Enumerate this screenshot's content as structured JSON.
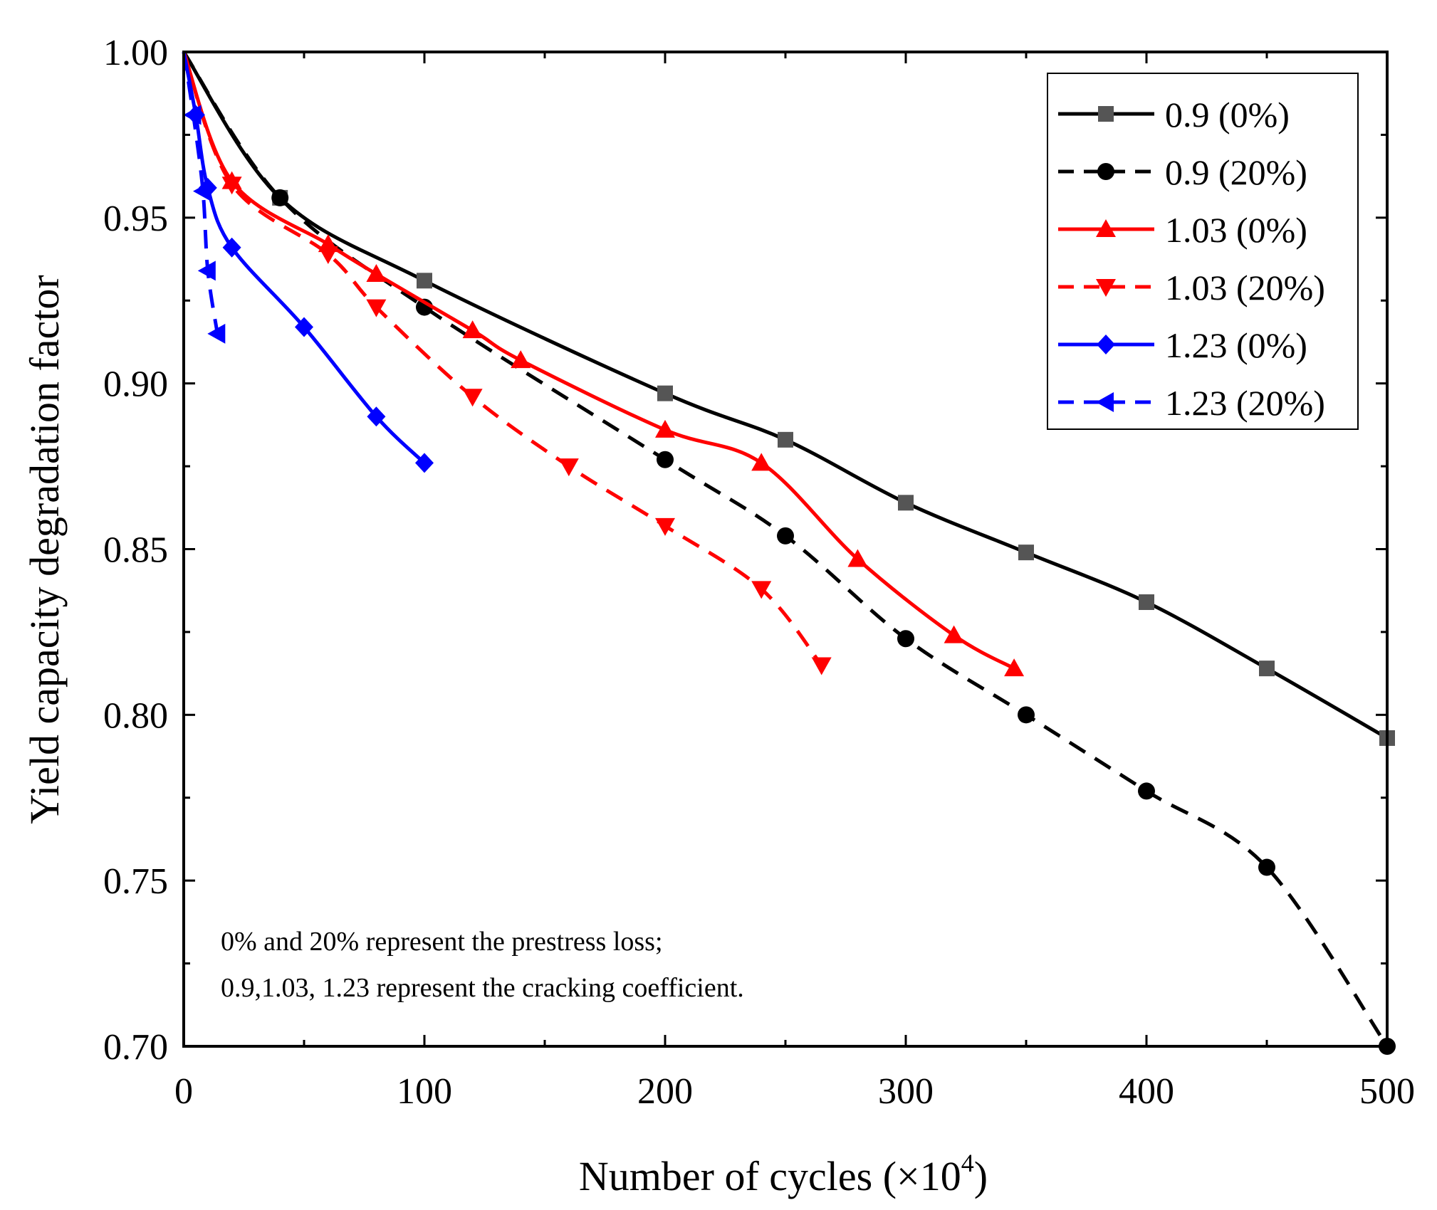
{
  "chart_data": {
    "type": "line",
    "title": "",
    "xlabel": "Number of cycles (×10⁴)",
    "xlabel_base": "Number of cycles (×10",
    "xlabel_exp": "4",
    "xlabel_close": ")",
    "ylabel": "Yield capacity degradation factor",
    "xlim": [
      0,
      500
    ],
    "ylim": [
      0.7,
      1.0
    ],
    "xticks": [
      0,
      100,
      200,
      300,
      400,
      500
    ],
    "xtick_labels": [
      "0",
      "100",
      "200",
      "300",
      "400",
      "500"
    ],
    "yticks": [
      0.7,
      0.75,
      0.8,
      0.85,
      0.9,
      0.95,
      1.0
    ],
    "ytick_labels": [
      "0.70",
      "0.75",
      "0.80",
      "0.85",
      "0.90",
      "0.95",
      "1.00"
    ],
    "grid": false,
    "legend_position": "top-right",
    "series": [
      {
        "name": "0.9 (0%)",
        "color": "#000000",
        "marker_color": "#555555",
        "marker": "square",
        "dash": false,
        "x": [
          0,
          40,
          100,
          200,
          250,
          300,
          350,
          400,
          450,
          500
        ],
        "y": [
          1.0,
          0.956,
          0.931,
          0.897,
          0.883,
          0.864,
          0.849,
          0.834,
          0.814,
          0.793
        ]
      },
      {
        "name": "0.9 (20%)",
        "color": "#000000",
        "marker_color": "#000000",
        "marker": "circle",
        "dash": true,
        "x": [
          0,
          40,
          100,
          200,
          250,
          300,
          350,
          400,
          450,
          500
        ],
        "y": [
          1.0,
          0.956,
          0.923,
          0.877,
          0.854,
          0.823,
          0.8,
          0.777,
          0.754,
          0.7
        ]
      },
      {
        "name": "1.03 (0%)",
        "color": "#ff0000",
        "marker_color": "#ff0000",
        "marker": "triangle-up",
        "dash": false,
        "x": [
          0,
          20,
          60,
          80,
          120,
          140,
          200,
          240,
          280,
          320,
          345
        ],
        "y": [
          1.0,
          0.961,
          0.942,
          0.933,
          0.916,
          0.907,
          0.886,
          0.876,
          0.847,
          0.824,
          0.814
        ]
      },
      {
        "name": "1.03 (20%)",
        "color": "#ff0000",
        "marker_color": "#ff0000",
        "marker": "triangle-down",
        "dash": true,
        "x": [
          0,
          20,
          60,
          80,
          120,
          160,
          200,
          240,
          265
        ],
        "y": [
          1.0,
          0.96,
          0.939,
          0.923,
          0.896,
          0.875,
          0.857,
          0.838,
          0.815
        ]
      },
      {
        "name": "1.23 (0%)",
        "color": "#0000ff",
        "marker_color": "#0000ff",
        "marker": "diamond",
        "dash": false,
        "x": [
          0,
          5,
          10,
          20,
          50,
          80,
          100
        ],
        "y": [
          1.0,
          0.981,
          0.959,
          0.941,
          0.917,
          0.89,
          0.876
        ]
      },
      {
        "name": "1.23 (20%)",
        "color": "#0000ff",
        "marker_color": "#0000ff",
        "marker": "triangle-left",
        "dash": true,
        "x": [
          0,
          4,
          8,
          10,
          14
        ],
        "y": [
          1.0,
          0.981,
          0.958,
          0.934,
          0.915
        ]
      }
    ],
    "annotations": [
      "0% and 20% represent the prestress loss;",
      "0.9,1.03, 1.23 represent the cracking coefficient."
    ]
  }
}
